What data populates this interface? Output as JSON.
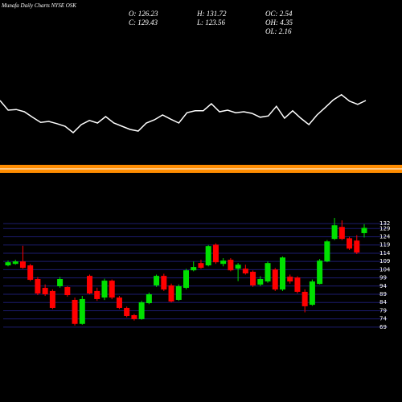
{
  "chart_data": {
    "type": "candlestick",
    "title": "Munafa Daily Charts NYSE OSK",
    "stats": [
      {
        "value": 126.23,
        "label": "O: 126.23"
      },
      {
        "value": 129.43,
        "label": "C: 129.43"
      },
      {
        "value": 131.72,
        "label": "H: 131.72"
      },
      {
        "value": 123.56,
        "label": "L: 123.56"
      },
      {
        "value": 2.54,
        "label": "OC: 2.54"
      },
      {
        "value": 4.35,
        "label": "OH: 4.35"
      },
      {
        "value": 2.16,
        "label": "OL: 2.16"
      }
    ],
    "up_color": "#00e000",
    "down_color": "#ff0000",
    "grid": true,
    "grid_color": "#1c1c6e",
    "ylim": [
      66,
      136
    ],
    "yticks": [
      132,
      129,
      124,
      119,
      114,
      109,
      104,
      99,
      94,
      89,
      84,
      79,
      74,
      69
    ],
    "open": [
      106.6,
      107.5,
      109.0,
      106.6,
      98.3,
      92.9,
      91.0,
      93.9,
      93.4,
      85.6,
      71.0,
      100.2,
      91.0,
      87.0,
      97.3,
      87.0,
      80.7,
      76.3,
      73.9,
      83.6,
      94.4,
      100.2,
      94.4,
      85.6,
      92.9,
      103.6,
      108.0,
      106.6,
      119.2,
      107.5,
      110.0,
      104.6,
      104.6,
      102.7,
      94.9,
      96.8,
      104.1,
      91.9,
      99.7,
      99.2,
      90.5,
      82.6,
      95.3,
      109.0,
      122.7,
      130.0,
      123.1,
      121.7,
      126.23
    ],
    "high": [
      109.5,
      110,
      118.5,
      107.5,
      99.5,
      95,
      92,
      99.5,
      94,
      87,
      88,
      101,
      93,
      98.5,
      98,
      88,
      81.5,
      77,
      85,
      90,
      101,
      101.5,
      95.5,
      95,
      104.5,
      109,
      110,
      119,
      120,
      111,
      111,
      108,
      107,
      103.5,
      100,
      109,
      105,
      112,
      101,
      100,
      92,
      98,
      110.5,
      122,
      135.5,
      134,
      124,
      125,
      131.72
    ],
    "low": [
      106,
      107,
      104.5,
      97,
      88.5,
      88,
      80,
      93,
      87.5,
      70,
      70.5,
      89,
      85,
      85.5,
      86,
      80,
      75,
      73,
      73.5,
      83,
      93.5,
      91,
      84,
      85,
      92,
      103,
      104.5,
      106,
      107.5,
      106,
      103,
      97,
      101,
      93.5,
      94,
      96,
      91,
      91,
      95.5,
      89.5,
      78,
      82,
      95,
      108.5,
      122,
      122,
      116,
      113.5,
      123.56
    ],
    "close": [
      108.5,
      109.0,
      105.1,
      97.8,
      89.5,
      89.0,
      80.7,
      98.3,
      88.5,
      71.0,
      86.1,
      89.5,
      86.1,
      97.3,
      87.0,
      80.7,
      75.8,
      73.9,
      84.1,
      89.0,
      100.2,
      91.9,
      84.6,
      93.9,
      103.6,
      105.6,
      105.1,
      118.3,
      108.5,
      109.5,
      103.6,
      107.0,
      101.7,
      94.4,
      98.3,
      108.0,
      91.9,
      111.4,
      96.8,
      90.5,
      81.7,
      96.8,
      109.5,
      121.2,
      131.0,
      122.7,
      116.8,
      114.4,
      129.43
    ],
    "indicator": {
      "color": "#ffffff",
      "ylim": [
        0,
        100
      ],
      "values": [
        75,
        60,
        61,
        57.5,
        49,
        41,
        42.5,
        39,
        35,
        25,
        37.5,
        44,
        40,
        50,
        40,
        35,
        30,
        27.5,
        40,
        45,
        52.5,
        46,
        40,
        56,
        59,
        59,
        70,
        57.5,
        60,
        56,
        57.5,
        55,
        49,
        51,
        66,
        47.5,
        59,
        47.5,
        37.5,
        52.5,
        64,
        76,
        84,
        74,
        69,
        75
      ]
    }
  }
}
